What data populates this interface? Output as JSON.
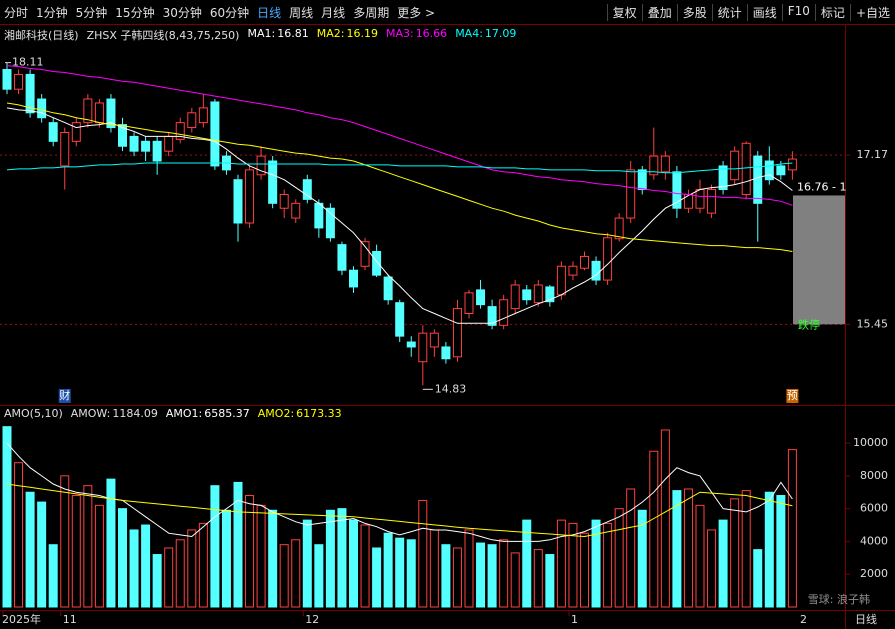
{
  "toolbar": {
    "left": [
      "分时",
      "1分钟",
      "5分钟",
      "15分钟",
      "30分钟",
      "60分钟",
      "日线",
      "周线",
      "月线",
      "多周期",
      "更多 >"
    ],
    "right": [
      "复权",
      "叠加",
      "多股",
      "统计",
      "画线",
      "F10",
      "标记",
      "+自选"
    ]
  },
  "watermark": "雪球: 浪子韩",
  "chart_data": [
    {
      "type": "candlestick",
      "title": "湘邮科技(日线)",
      "indicator": "ZHSX 子韩四线(8,43,75,250)",
      "up_color": "#ff4040",
      "down_color": "#54ffff",
      "open": [
        18.04,
        17.84,
        17.99,
        17.74,
        17.5,
        17.06,
        17.31,
        17.5,
        17.5,
        17.74,
        17.48,
        17.36,
        17.31,
        17.31,
        17.21,
        17.33,
        17.45,
        17.5,
        17.71,
        17.16,
        16.92,
        16.48,
        16.97,
        17.11,
        16.63,
        16.53,
        16.92,
        16.68,
        16.63,
        16.26,
        16.0,
        16.04,
        16.19,
        15.93,
        15.67,
        15.27,
        15.07,
        15.22,
        15.22,
        15.12,
        15.56,
        15.8,
        15.63,
        15.44,
        15.61,
        15.8,
        15.67,
        15.83,
        15.75,
        15.95,
        16.02,
        16.09,
        15.9,
        16.32,
        16.53,
        17.02,
        16.97,
        17.0,
        17.0,
        16.63,
        16.63,
        16.58,
        17.06,
        16.92,
        16.77,
        17.16,
        17.11,
        17.06,
        17.02
      ],
      "high": [
        18.11,
        18.04,
        18.04,
        17.79,
        17.55,
        17.45,
        17.55,
        17.79,
        17.74,
        17.79,
        17.55,
        17.4,
        17.36,
        17.36,
        17.4,
        17.55,
        17.65,
        17.79,
        17.74,
        17.21,
        16.97,
        17.06,
        17.26,
        17.16,
        16.82,
        16.72,
        16.97,
        16.72,
        16.68,
        16.29,
        16.04,
        16.33,
        16.26,
        15.95,
        15.7,
        15.33,
        15.44,
        15.4,
        15.27,
        15.7,
        15.8,
        15.9,
        15.7,
        15.75,
        15.9,
        15.85,
        15.9,
        15.85,
        16.09,
        16.09,
        16.19,
        16.14,
        16.38,
        16.58,
        17.11,
        17.06,
        17.45,
        17.21,
        17.06,
        16.82,
        16.92,
        16.87,
        17.11,
        17.26,
        17.31,
        17.21,
        17.26,
        17.11,
        17.21
      ],
      "low": [
        17.79,
        17.79,
        17.55,
        17.5,
        17.26,
        16.82,
        17.26,
        17.45,
        17.45,
        17.4,
        17.21,
        17.16,
        17.11,
        16.97,
        17.16,
        17.29,
        17.4,
        17.45,
        17.02,
        16.97,
        16.29,
        16.43,
        16.92,
        16.63,
        16.53,
        16.48,
        16.68,
        16.33,
        16.29,
        15.95,
        15.77,
        16.0,
        15.93,
        15.65,
        15.27,
        15.12,
        14.83,
        15.12,
        15.05,
        15.07,
        15.51,
        15.61,
        15.4,
        15.4,
        15.56,
        15.65,
        15.63,
        15.63,
        15.7,
        15.9,
        16.0,
        15.85,
        15.85,
        16.29,
        16.48,
        16.77,
        16.92,
        16.92,
        16.53,
        16.58,
        16.58,
        16.53,
        16.77,
        16.87,
        16.72,
        16.29,
        16.87,
        16.92,
        16.92
      ],
      "close": [
        17.84,
        17.99,
        17.6,
        17.55,
        17.31,
        17.4,
        17.5,
        17.74,
        17.7,
        17.45,
        17.26,
        17.21,
        17.21,
        17.11,
        17.36,
        17.5,
        17.6,
        17.65,
        17.06,
        17.02,
        16.48,
        17.02,
        17.16,
        16.68,
        16.77,
        16.68,
        16.72,
        16.43,
        16.33,
        16.0,
        15.83,
        16.29,
        15.95,
        15.7,
        15.33,
        15.22,
        15.36,
        15.36,
        15.1,
        15.61,
        15.77,
        15.65,
        15.44,
        15.7,
        15.85,
        15.7,
        15.85,
        15.68,
        16.04,
        16.04,
        16.14,
        15.9,
        16.33,
        16.53,
        17.02,
        16.82,
        17.16,
        17.16,
        16.63,
        16.77,
        16.82,
        16.82,
        16.82,
        17.21,
        17.29,
        16.68,
        16.92,
        16.97,
        17.13
      ],
      "series": [
        {
          "name": "MA1:",
          "color": "#ffffff",
          "values": [
            17.65,
            17.63,
            17.62,
            17.6,
            17.55,
            17.5,
            17.45,
            17.47,
            17.48,
            17.5,
            17.45,
            17.41,
            17.36,
            17.36,
            17.36,
            17.36,
            17.34,
            17.33,
            17.31,
            17.23,
            17.14,
            17.06,
            17.01,
            16.97,
            16.92,
            16.84,
            16.76,
            16.68,
            16.58,
            16.48,
            16.38,
            16.24,
            16.09,
            15.95,
            15.84,
            15.72,
            15.61,
            15.56,
            15.51,
            15.46,
            15.46,
            15.46,
            15.46,
            15.51,
            15.56,
            15.61,
            15.66,
            15.7,
            15.75,
            15.82,
            15.88,
            15.95,
            16.06,
            16.18,
            16.29,
            16.4,
            16.52,
            16.63,
            16.69,
            16.76,
            16.82,
            16.84,
            16.85,
            16.87,
            16.9,
            16.94,
            16.97,
            16.9,
            16.81
          ]
        },
        {
          "name": "MA2:",
          "color": "#ffff00",
          "values": [
            17.7,
            17.68,
            17.65,
            17.63,
            17.6,
            17.58,
            17.55,
            17.53,
            17.5,
            17.48,
            17.47,
            17.45,
            17.43,
            17.41,
            17.4,
            17.38,
            17.36,
            17.34,
            17.32,
            17.3,
            17.28,
            17.27,
            17.25,
            17.23,
            17.21,
            17.19,
            17.18,
            17.16,
            17.14,
            17.13,
            17.11,
            17.07,
            17.03,
            16.99,
            16.95,
            16.91,
            16.87,
            16.83,
            16.79,
            16.75,
            16.71,
            16.67,
            16.63,
            16.6,
            16.56,
            16.53,
            16.5,
            16.46,
            16.43,
            16.41,
            16.39,
            16.37,
            16.36,
            16.34,
            16.32,
            16.31,
            16.3,
            16.29,
            16.28,
            16.27,
            16.26,
            16.25,
            16.25,
            16.24,
            16.23,
            16.23,
            16.22,
            16.21,
            16.19
          ]
        },
        {
          "name": "MA3:",
          "color": "#ff00ff",
          "values": [
            18.08,
            18.07,
            18.05,
            18.04,
            18.02,
            18.01,
            17.99,
            17.97,
            17.96,
            17.94,
            17.92,
            17.91,
            17.89,
            17.87,
            17.85,
            17.83,
            17.81,
            17.79,
            17.77,
            17.75,
            17.73,
            17.71,
            17.69,
            17.67,
            17.65,
            17.63,
            17.6,
            17.58,
            17.55,
            17.53,
            17.5,
            17.46,
            17.42,
            17.38,
            17.34,
            17.3,
            17.26,
            17.22,
            17.18,
            17.14,
            17.1,
            17.06,
            17.02,
            17.0,
            16.99,
            16.97,
            16.95,
            16.94,
            16.92,
            16.91,
            16.9,
            16.88,
            16.87,
            16.86,
            16.84,
            16.83,
            16.81,
            16.8,
            16.78,
            16.77,
            16.75,
            16.75,
            16.74,
            16.74,
            16.73,
            16.73,
            16.72,
            16.7,
            16.66
          ]
        },
        {
          "name": "MA4:",
          "color": "#00ffff",
          "values": [
            17.02,
            17.03,
            17.03,
            17.04,
            17.04,
            17.05,
            17.05,
            17.06,
            17.07,
            17.07,
            17.08,
            17.08,
            17.09,
            17.09,
            17.09,
            17.09,
            17.09,
            17.09,
            17.09,
            17.09,
            17.08,
            17.08,
            17.08,
            17.08,
            17.08,
            17.08,
            17.08,
            17.08,
            17.07,
            17.07,
            17.07,
            17.07,
            17.07,
            17.07,
            17.06,
            17.06,
            17.06,
            17.06,
            17.06,
            17.05,
            17.05,
            17.05,
            17.04,
            17.04,
            17.04,
            17.03,
            17.03,
            17.02,
            17.02,
            17.02,
            17.02,
            17.01,
            17.01,
            17.01,
            17.0,
            17.0,
            17.0,
            16.99,
            16.99,
            17.0,
            17.01,
            17.02,
            17.03,
            17.03,
            17.04,
            17.05,
            17.06,
            17.08,
            17.09
          ]
        }
      ],
      "current_price": 16.76,
      "current_label": "16.76 - 1",
      "limit_label": "跌停",
      "event_labels": [
        "财",
        "预"
      ],
      "ylim": [
        14.63,
        18.34
      ],
      "yticks": [
        15.45,
        17.17
      ],
      "grid": true
    },
    {
      "type": "bar",
      "title": "AMO(5,10)",
      "extra": {
        "name": "AMOW:",
        "value": 1184.09
      },
      "categories": [
        "2025年",
        null,
        null,
        null,
        null,
        "11",
        null,
        null,
        null,
        null,
        null,
        null,
        null,
        null,
        null,
        null,
        null,
        null,
        null,
        null,
        null,
        null,
        null,
        null,
        null,
        null,
        "12",
        null,
        null,
        null,
        null,
        null,
        null,
        null,
        null,
        null,
        null,
        null,
        null,
        null,
        null,
        null,
        null,
        null,
        null,
        null,
        null,
        null,
        null,
        "1",
        null,
        null,
        null,
        null,
        null,
        null,
        null,
        null,
        null,
        null,
        null,
        null,
        null,
        null,
        null,
        null,
        null,
        null,
        null
      ],
      "next_label": "2",
      "period_label": "日线",
      "values": [
        11000,
        8800,
        7000,
        6400,
        3800,
        8000,
        6800,
        7400,
        6200,
        7800,
        6000,
        4700,
        5000,
        3200,
        3600,
        4100,
        4700,
        5100,
        7400,
        5900,
        7600,
        6800,
        6200,
        5900,
        3800,
        4100,
        5300,
        3800,
        5900,
        6000,
        5300,
        5000,
        3600,
        4500,
        4200,
        4100,
        6500,
        4700,
        3800,
        3600,
        4700,
        3900,
        3800,
        4100,
        3300,
        5300,
        3500,
        3200,
        5300,
        5100,
        4500,
        5300,
        5100,
        6000,
        7200,
        5900,
        9500,
        10800,
        7100,
        7200,
        6200,
        4700,
        5300,
        6600,
        7100,
        3500,
        7000,
        6800,
        9600
      ],
      "series": [
        {
          "name": "AMO1:",
          "color": "#ffffff",
          "values": [
            10000,
            9200,
            8500,
            8000,
            7500,
            7200,
            7000,
            6900,
            6800,
            6600,
            6500,
            6000,
            5500,
            5000,
            4500,
            4400,
            4300,
            4900,
            5500,
            6000,
            6500,
            6300,
            6200,
            5800,
            5500,
            5200,
            5000,
            5100,
            5200,
            5300,
            5400,
            5100,
            4900,
            4600,
            4400,
            4600,
            4800,
            4700,
            4700,
            4600,
            4500,
            4300,
            4100,
            4000,
            4000,
            4000,
            4000,
            4100,
            4300,
            4400,
            4600,
            4900,
            5200,
            5500,
            5900,
            6400,
            7000,
            7800,
            8500,
            8200,
            8000,
            7000,
            6000,
            5900,
            5800,
            6100,
            6500,
            7600,
            6585.37
          ]
        },
        {
          "name": "AMO2:",
          "color": "#ffff00",
          "values": [
            7500,
            7400,
            7300,
            7200,
            7100,
            7000,
            6900,
            6800,
            6700,
            6600,
            6500,
            6430,
            6360,
            6290,
            6220,
            6150,
            6080,
            6010,
            5940,
            5870,
            5800,
            5770,
            5740,
            5710,
            5680,
            5650,
            5620,
            5590,
            5560,
            5530,
            5500,
            5430,
            5360,
            5290,
            5220,
            5150,
            5080,
            5010,
            4940,
            4870,
            4800,
            4750,
            4700,
            4650,
            4600,
            4550,
            4500,
            4450,
            4400,
            4350,
            4300,
            4440,
            4580,
            4720,
            4860,
            5000,
            5400,
            5800,
            6200,
            6600,
            7000,
            6950,
            6900,
            6850,
            6800,
            6640,
            6490,
            6330,
            6173.33
          ]
        }
      ],
      "ylim": [
        0,
        12200
      ],
      "yticks": [
        2000,
        4000,
        6000,
        8000,
        10000
      ],
      "grid": false
    }
  ]
}
